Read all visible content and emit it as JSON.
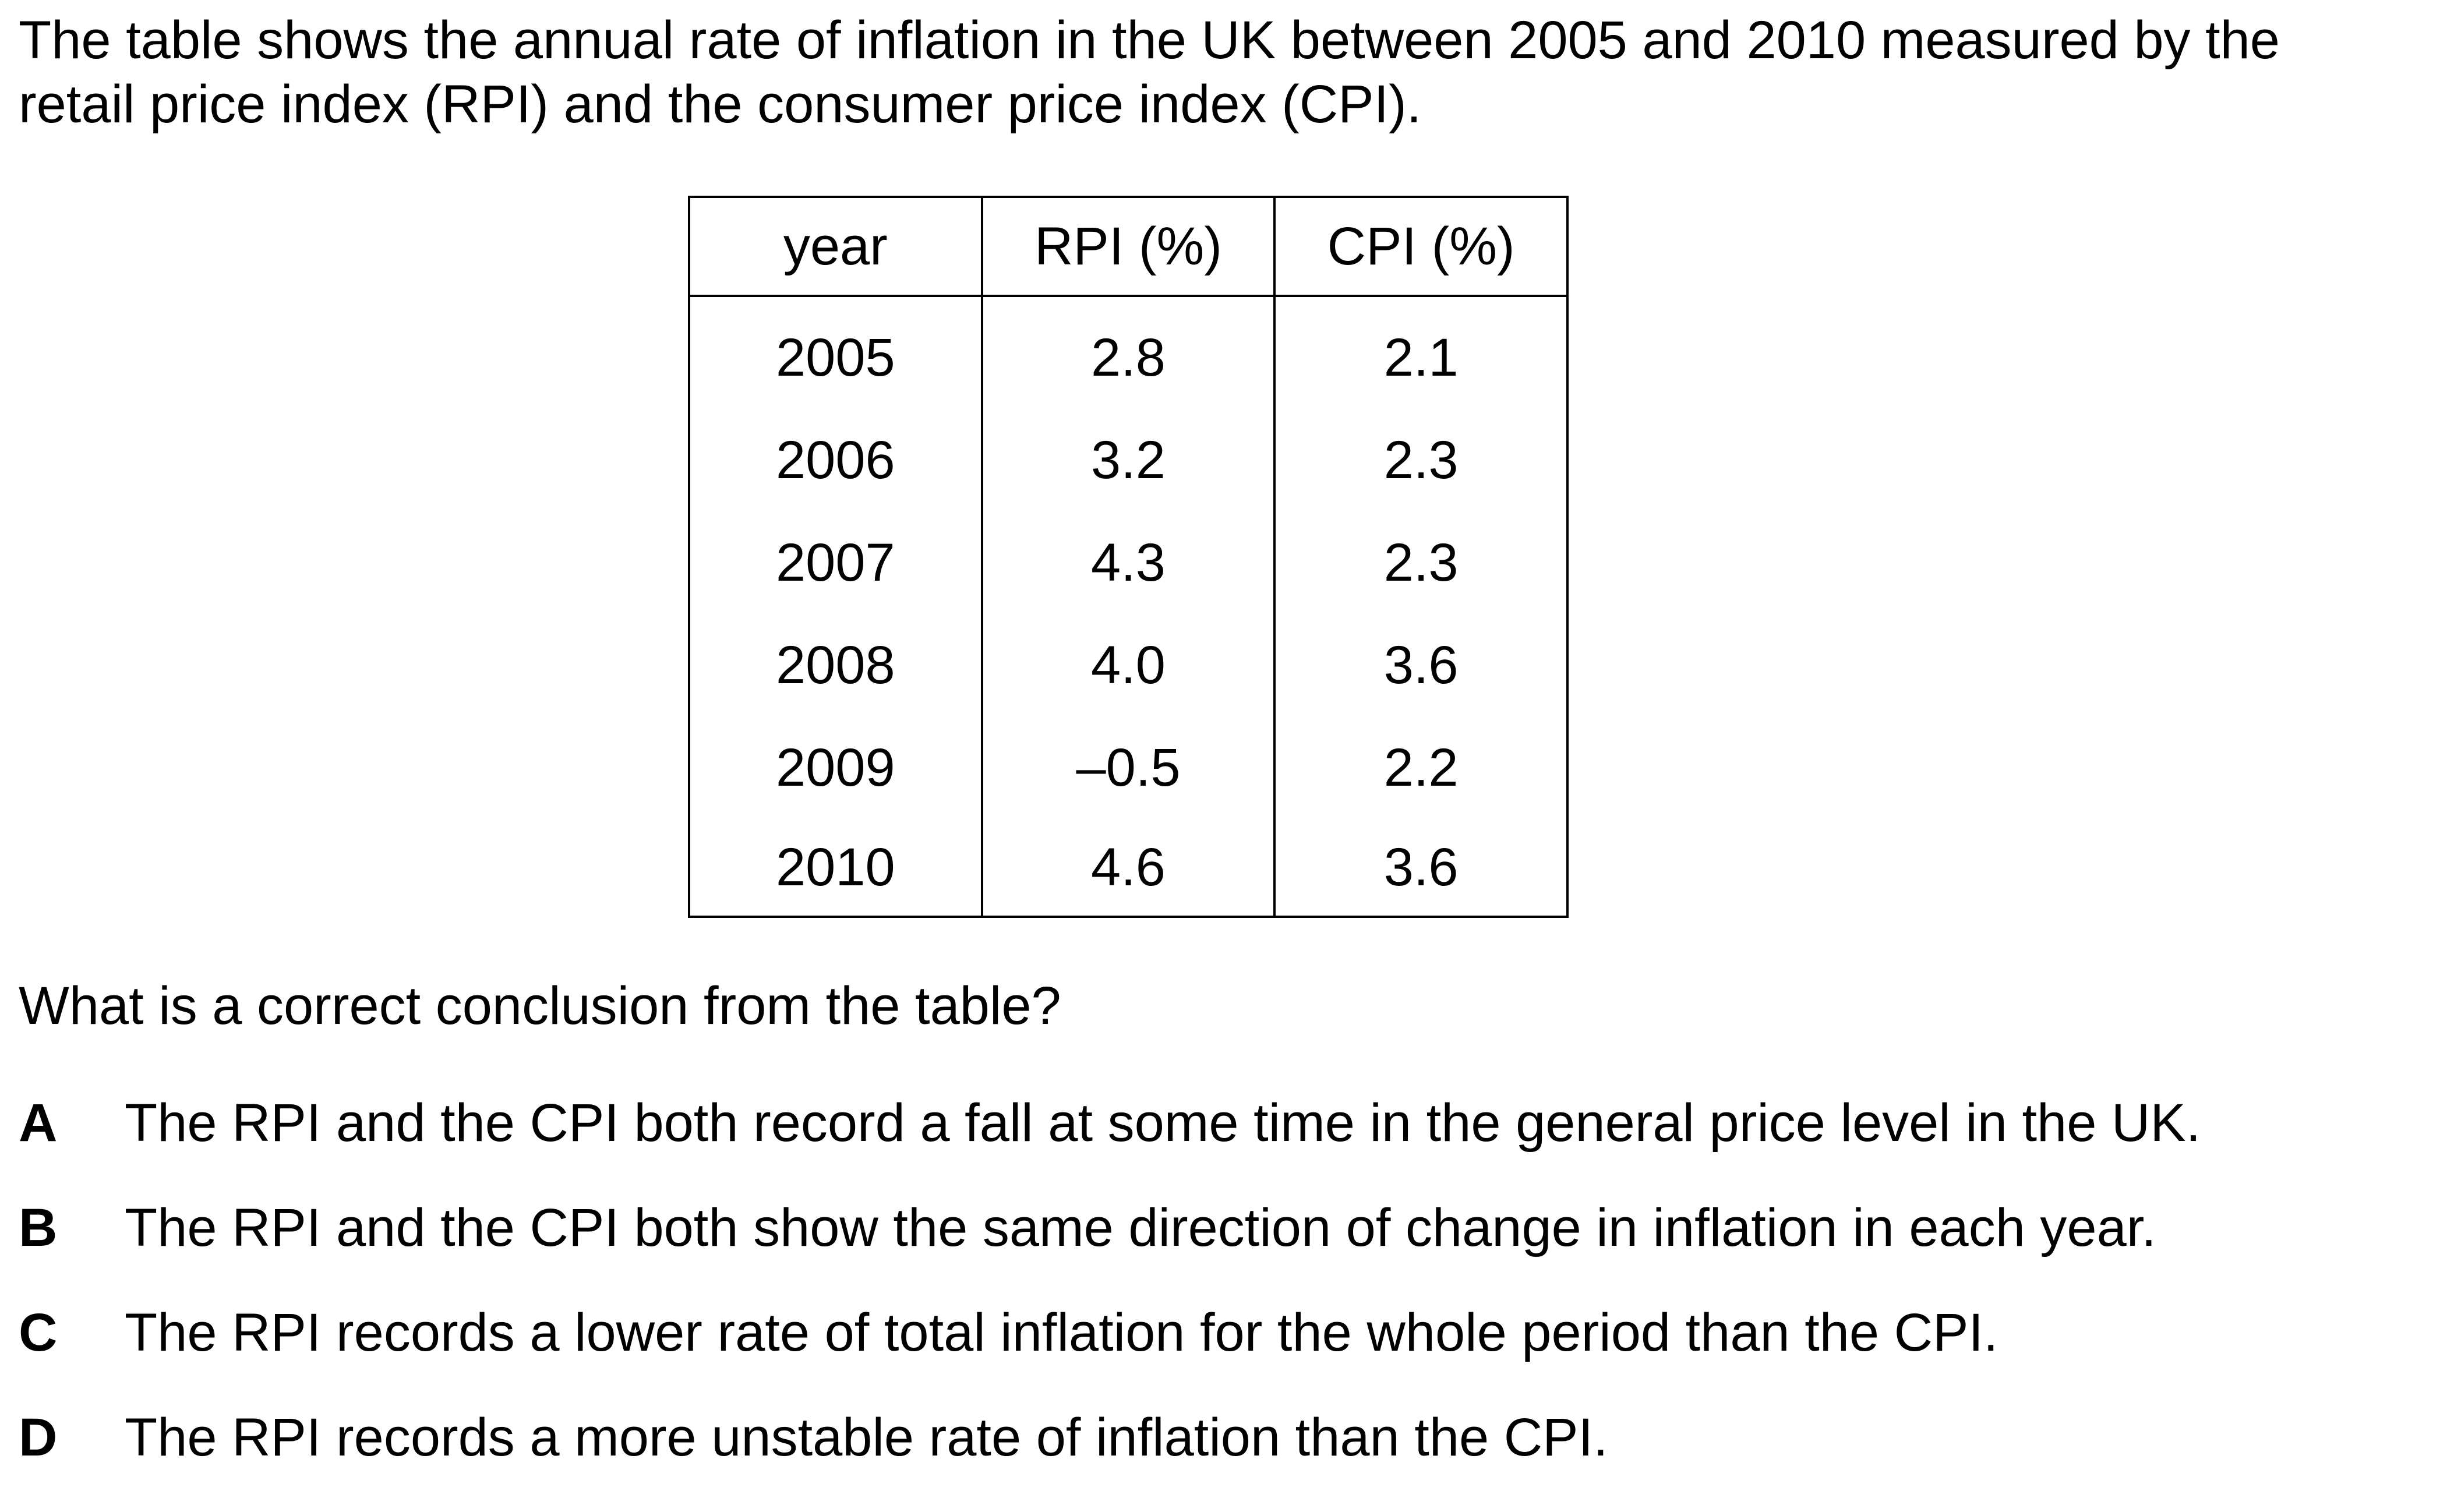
{
  "intro": {
    "line1": "The table shows the annual rate of inflation in the UK between 2005 and 2010 measured by the",
    "line2": "retail price index (RPI) and the consumer price index (CPI)."
  },
  "table": {
    "headers": [
      "year",
      "RPI (%)",
      "CPI (%)"
    ],
    "rows": [
      [
        "2005",
        "2.8",
        "2.1"
      ],
      [
        "2006",
        "3.2",
        "2.3"
      ],
      [
        "2007",
        "4.3",
        "2.3"
      ],
      [
        "2008",
        "4.0",
        "3.6"
      ],
      [
        "2009",
        "–0.5",
        "2.2"
      ],
      [
        "2010",
        "4.6",
        "3.6"
      ]
    ]
  },
  "question": "What is a correct conclusion from the table?",
  "options": [
    {
      "letter": "A",
      "text": "The RPI and the CPI both record a fall at some time in the general price level in the UK."
    },
    {
      "letter": "B",
      "text": "The RPI and the CPI both show the same direction of change in inflation in each year."
    },
    {
      "letter": "C",
      "text": "The RPI records a lower rate of total inflation for the whole period than the CPI."
    },
    {
      "letter": "D",
      "text": "The RPI records a more unstable rate of inflation than the CPI."
    }
  ]
}
